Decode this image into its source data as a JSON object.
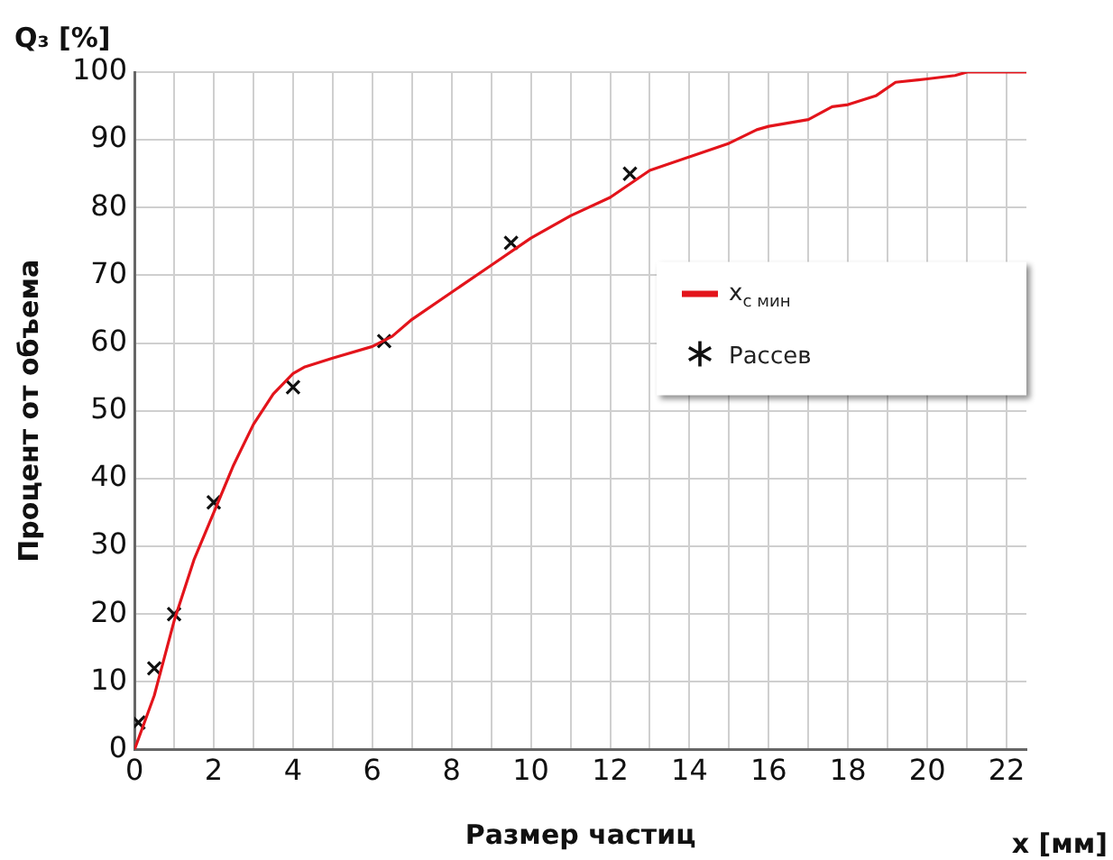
{
  "chart_data": {
    "type": "line",
    "xlabel": "Размер частиц",
    "ylabel": "Процент от объема",
    "annotations": [
      "Q₃ [%]",
      "x [мм]"
    ],
    "series": [
      {
        "name": "x$_{c мин}$",
        "type": "line",
        "color": "#e3141b",
        "marker": "none",
        "x": [
          0,
          0.5,
          1,
          1.5,
          2,
          2.5,
          3,
          3.5,
          4,
          4.3,
          5,
          6,
          6.5,
          7,
          8,
          9,
          10,
          11,
          12,
          12.5,
          13,
          14,
          15,
          15.7,
          16,
          17,
          17.6,
          18,
          18.7,
          19.2,
          20,
          20.7,
          21,
          22.5
        ],
        "values": [
          0,
          8,
          19,
          28,
          35,
          42,
          48,
          52.5,
          55.5,
          56.5,
          57.8,
          59.5,
          61,
          63.5,
          67.5,
          71.5,
          75.5,
          78.8,
          81.5,
          83.5,
          85.5,
          87.5,
          89.5,
          91.5,
          92,
          93,
          94.9,
          95.2,
          96.5,
          98.5,
          99,
          99.5,
          100,
          100
        ]
      },
      {
        "name": "Рассев",
        "type": "scatter",
        "color": "#111111",
        "marker": "cross",
        "x": [
          0.1,
          0.5,
          1,
          2,
          4,
          6.3,
          9.5,
          12.5
        ],
        "values": [
          4,
          12,
          20,
          36.5,
          53.5,
          60.3,
          74.8,
          85
        ]
      }
    ],
    "xlim": [
      0,
      22.5
    ],
    "xticks": [
      0,
      {
        "value": 1,
        "label": null
      },
      2,
      {
        "value": 3,
        "label": null
      },
      4,
      {
        "value": 5,
        "label": null
      },
      6,
      {
        "value": 7,
        "label": null
      },
      8,
      {
        "value": 9,
        "label": null
      },
      10,
      {
        "value": 11,
        "label": null
      },
      12,
      {
        "value": 13,
        "label": null
      },
      14,
      {
        "value": 15,
        "label": null
      },
      16,
      {
        "value": 17,
        "label": null
      },
      18,
      {
        "value": 19,
        "label": null
      },
      20,
      {
        "value": 21,
        "label": null
      },
      22
    ],
    "ylim": [
      0,
      100
    ],
    "yticks": [
      0,
      10,
      20,
      30,
      40,
      50,
      60,
      70,
      80,
      90,
      100
    ],
    "grid": true,
    "legend": "right"
  }
}
